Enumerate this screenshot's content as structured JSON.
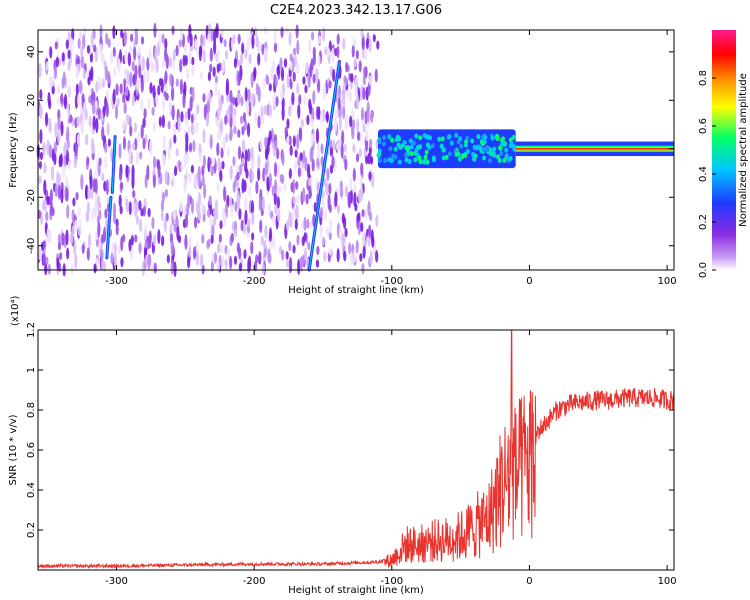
{
  "figure": {
    "title": "C2E4.2023.342.13.17.G06"
  },
  "colors": {
    "snr_line": "#e8332e",
    "axis": "#000000",
    "background": "#ffffff"
  },
  "chart_data": [
    {
      "type": "heatmap",
      "xlabel": "Height of straight line (km)",
      "ylabel": "Frequency (Hz)",
      "xlim": [
        -357,
        105
      ],
      "ylim": [
        -50,
        49
      ],
      "xticks": [
        -300,
        -200,
        -100,
        0,
        100
      ],
      "yticks": [
        -40,
        -20,
        0,
        20,
        40
      ],
      "colorbar": {
        "label": "Normalized spectral amplitude",
        "range": [
          0.0,
          1.0
        ],
        "ticks": [
          0.0,
          0.2,
          0.4,
          0.6,
          0.8
        ],
        "colormap": [
          "#ffffff",
          "#c9a0f5",
          "#8a2be2",
          "#1e3cff",
          "#00c8ff",
          "#00ff66",
          "#ffff00",
          "#ff8800",
          "#ff0000",
          "#ff1a8c"
        ]
      },
      "features": [
        {
          "description_text": "",
          "kind": "noise-field",
          "x_range": [
            -357,
            -110
          ],
          "y_range": [
            -50,
            49
          ]
        },
        {
          "kind": "streak",
          "x": [
            -160,
            -138
          ],
          "y": [
            -50,
            36
          ]
        },
        {
          "kind": "streak",
          "x": [
            -307,
            -304
          ],
          "y": [
            -45,
            -20
          ]
        },
        {
          "kind": "streak",
          "x": [
            -303,
            -301
          ],
          "y": [
            -18,
            5
          ]
        },
        {
          "kind": "signal-band",
          "x_range": [
            -110,
            -10
          ],
          "y_center": 0,
          "half_width": 8,
          "level": 0.35
        },
        {
          "kind": "signal-band",
          "x_range": [
            -10,
            105
          ],
          "y_center": 0,
          "half_width": 3,
          "level": 0.75
        }
      ]
    },
    {
      "type": "line",
      "xlabel": "Height of straight line (km)",
      "ylabel": "SNR (10 * v/v)",
      "y_multiplier": "(x10⁴)",
      "xlim": [
        -357,
        105
      ],
      "ylim": [
        0,
        1.2
      ],
      "xticks": [
        -300,
        -200,
        -100,
        0,
        100
      ],
      "yticks": [
        0.2,
        0.4,
        0.6,
        0.8,
        1.0,
        1.2
      ],
      "series": [
        {
          "x": [
            -357,
            -300,
            -250,
            -200,
            -150,
            -110,
            -100,
            -95,
            -90,
            -80,
            -70,
            -60,
            -50,
            -40,
            -30,
            -25,
            -20,
            -15,
            -12,
            -10,
            -5,
            0,
            10,
            20,
            30,
            40,
            50,
            60,
            70,
            80,
            90,
            100,
            105
          ],
          "y": [
            0.02,
            0.02,
            0.025,
            0.03,
            0.03,
            0.04,
            0.06,
            0.1,
            0.15,
            0.15,
            0.17,
            0.18,
            0.2,
            0.25,
            0.3,
            0.4,
            0.5,
            0.55,
            0.6,
            0.55,
            0.6,
            0.65,
            0.72,
            0.8,
            0.83,
            0.84,
            0.85,
            0.85,
            0.86,
            0.86,
            0.86,
            0.85,
            0.85
          ]
        }
      ]
    }
  ]
}
